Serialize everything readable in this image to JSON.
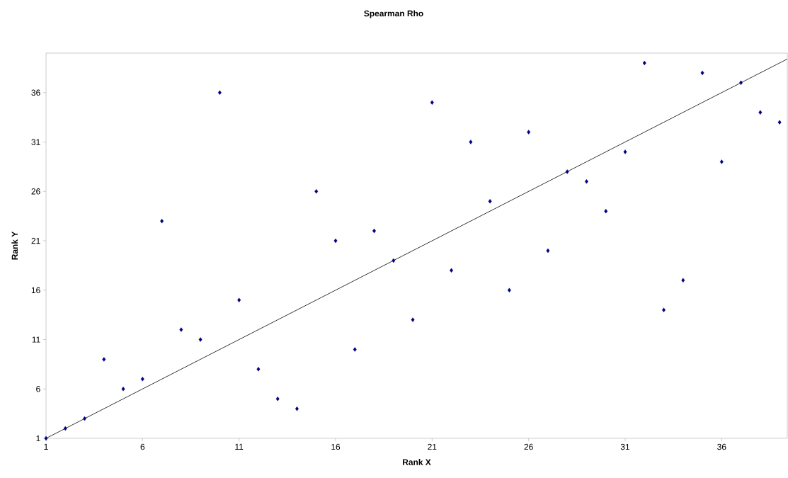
{
  "chart_data": {
    "type": "scatter",
    "title": "Spearman Rho",
    "xlabel": "Rank X",
    "ylabel": "Rank Y",
    "xlim": [
      1,
      39.4
    ],
    "ylim": [
      1,
      40
    ],
    "xticks": [
      1,
      6,
      11,
      16,
      21,
      26,
      31,
      36
    ],
    "yticks": [
      1,
      6,
      11,
      16,
      21,
      26,
      31,
      36
    ],
    "grid": false,
    "series": [
      {
        "marker": "diamond",
        "color": "#000080",
        "x": [
          1,
          2,
          3,
          4,
          5,
          6,
          7,
          8,
          9,
          10,
          11,
          12,
          13,
          14,
          15,
          16,
          17,
          18,
          19,
          20,
          21,
          22,
          23,
          24,
          25,
          26,
          27,
          28,
          29,
          30,
          31,
          32,
          33,
          34,
          35,
          36,
          37,
          38,
          39
        ],
        "values": [
          1,
          2,
          3,
          9,
          6,
          7,
          23,
          12,
          11,
          36,
          15,
          8,
          5,
          4,
          26,
          21,
          10,
          22,
          19,
          13,
          35,
          18,
          31,
          25,
          16,
          32,
          20,
          28,
          27,
          24,
          30,
          39,
          14,
          17,
          38,
          29,
          37,
          34,
          33
        ]
      },
      {
        "type": "line",
        "color": "#000000",
        "x": [
          1,
          39.4
        ],
        "values": [
          1,
          39.4
        ]
      }
    ]
  }
}
